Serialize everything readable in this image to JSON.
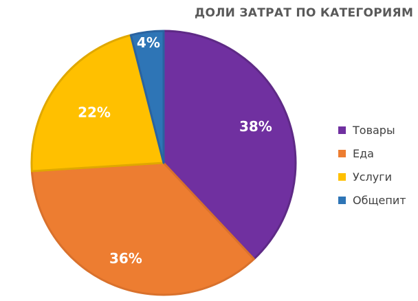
{
  "chart_data": {
    "type": "pie",
    "title": "ДОЛИ ЗАТРАТ ПО КАТЕГОРИЯМ",
    "categories": [
      "Товары",
      "Еда",
      "Услуги",
      "Общепит"
    ],
    "values": [
      38,
      36,
      22,
      4
    ],
    "data_labels": [
      "38%",
      "36%",
      "22%",
      "4%"
    ],
    "colors": [
      "#7030A0",
      "#ED7D31",
      "#FFC000",
      "#2E75B6"
    ],
    "border_colors": [
      "#5E2A86",
      "#D9712C",
      "#E0A800",
      "#2A63A0"
    ],
    "start_angle": "top",
    "direction": "clockwise",
    "legend": "right",
    "xlabel": "",
    "ylabel": ""
  }
}
